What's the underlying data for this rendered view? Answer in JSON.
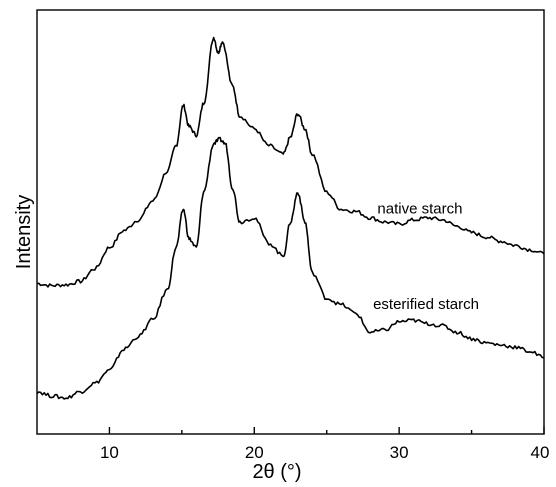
{
  "chart_data": {
    "type": "line",
    "xlabel": "2θ (°)",
    "ylabel": "Intensity",
    "xlim": [
      5,
      40
    ],
    "ylim": [
      0,
      100
    ],
    "xticks": [
      10,
      20,
      30,
      40
    ],
    "yticks_shown": false,
    "grid": false,
    "legend": "none",
    "series": [
      {
        "name": "native starch",
        "label_at": [
          28.5,
          52
        ],
        "points": [
          [
            5,
            35.5
          ],
          [
            6,
            35
          ],
          [
            7,
            35.2
          ],
          [
            8,
            36
          ],
          [
            9,
            39
          ],
          [
            10,
            44
          ],
          [
            11,
            48
          ],
          [
            12,
            50.5
          ],
          [
            13,
            55
          ],
          [
            14,
            62
          ],
          [
            14.6,
            68
          ],
          [
            15.1,
            77.5
          ],
          [
            15.5,
            72.5
          ],
          [
            16,
            70.5
          ],
          [
            16.5,
            78
          ],
          [
            17.2,
            93.5
          ],
          [
            17.5,
            90
          ],
          [
            17.8,
            92.5
          ],
          [
            18.5,
            82
          ],
          [
            19,
            75
          ],
          [
            20,
            72
          ],
          [
            21,
            68
          ],
          [
            22,
            66
          ],
          [
            22.5,
            70
          ],
          [
            23,
            75.5
          ],
          [
            23.5,
            72
          ],
          [
            24,
            66
          ],
          [
            25,
            57
          ],
          [
            26,
            53
          ],
          [
            27,
            52.5
          ],
          [
            28,
            51
          ],
          [
            29,
            50
          ],
          [
            30,
            49.5
          ],
          [
            31,
            50.5
          ],
          [
            32,
            51
          ],
          [
            33,
            50.5
          ],
          [
            34,
            49
          ],
          [
            35,
            47.5
          ],
          [
            36,
            46.5
          ],
          [
            37,
            45.5
          ],
          [
            38,
            44.5
          ],
          [
            39,
            43.5
          ],
          [
            40,
            42.5
          ]
        ]
      },
      {
        "name": "esterified starch",
        "label_at": [
          28.2,
          29.5
        ],
        "points": [
          [
            5,
            10
          ],
          [
            6,
            9
          ],
          [
            7,
            8.5
          ],
          [
            8,
            10
          ],
          [
            9,
            12
          ],
          [
            10,
            15
          ],
          [
            11,
            20
          ],
          [
            12,
            23
          ],
          [
            13,
            27
          ],
          [
            14,
            34
          ],
          [
            14.6,
            44
          ],
          [
            15.1,
            53
          ],
          [
            15.5,
            46
          ],
          [
            16,
            44
          ],
          [
            16.5,
            57
          ],
          [
            17.2,
            68.5
          ],
          [
            17.6,
            69.5
          ],
          [
            18,
            68.5
          ],
          [
            18.5,
            58
          ],
          [
            19,
            50
          ],
          [
            20,
            51
          ],
          [
            21,
            45
          ],
          [
            22,
            42
          ],
          [
            22.5,
            50
          ],
          [
            23,
            57
          ],
          [
            23.5,
            50
          ],
          [
            24,
            38
          ],
          [
            25,
            32
          ],
          [
            26,
            30.5
          ],
          [
            27,
            28.5
          ],
          [
            28,
            24
          ],
          [
            29,
            24.5
          ],
          [
            30,
            26.5
          ],
          [
            31,
            26.8
          ],
          [
            32,
            26
          ],
          [
            33,
            25.5
          ],
          [
            34,
            24
          ],
          [
            35,
            22.5
          ],
          [
            36,
            21.5
          ],
          [
            37,
            21
          ],
          [
            38,
            20.5
          ],
          [
            39,
            19.5
          ],
          [
            40,
            18
          ]
        ]
      }
    ]
  }
}
